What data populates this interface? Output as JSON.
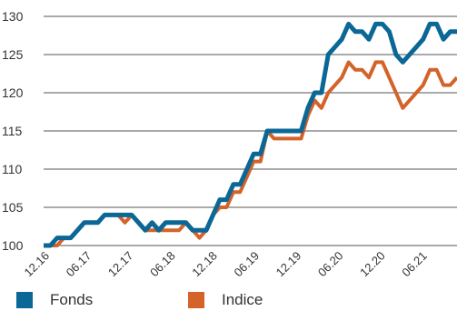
{
  "chart_data": {
    "type": "line",
    "yticks": [
      100,
      105,
      110,
      115,
      120,
      125,
      130
    ],
    "ylim": [
      100,
      130
    ],
    "xticks": [
      "12.16",
      "06.17",
      "12.17",
      "06.18",
      "12.18",
      "06.19",
      "12.19",
      "06.20",
      "12.20",
      "06.21"
    ],
    "grid": true,
    "legend_position": "bottom",
    "series": [
      {
        "name": "Fonds",
        "color": "#0a6796",
        "values": [
          100,
          100,
          101,
          101,
          101,
          102,
          103,
          103,
          103,
          104,
          104,
          104,
          104,
          104,
          103,
          102,
          103,
          102,
          103,
          103,
          103,
          103,
          102,
          102,
          102,
          104,
          106,
          106,
          108,
          108,
          110,
          112,
          112,
          115,
          115,
          115,
          115,
          115,
          115,
          118,
          120,
          120,
          125,
          126,
          127,
          129,
          128,
          128,
          127,
          129,
          129,
          128,
          125,
          124,
          125,
          126,
          127,
          129,
          129,
          127,
          128,
          128
        ]
      },
      {
        "name": "Indice",
        "color": "#d4632a",
        "values": [
          100,
          100,
          100,
          101,
          101,
          102,
          103,
          103,
          103,
          104,
          104,
          104,
          103,
          104,
          103,
          102,
          102,
          102,
          102,
          102,
          102,
          103,
          102,
          101,
          102,
          104,
          105,
          105,
          107,
          107,
          109,
          111,
          111,
          115,
          114,
          114,
          114,
          114,
          114,
          117,
          119,
          118,
          120,
          121,
          122,
          124,
          123,
          123,
          122,
          124,
          124,
          122,
          120,
          118,
          119,
          120,
          121,
          123,
          123,
          121,
          121,
          122
        ]
      }
    ]
  }
}
